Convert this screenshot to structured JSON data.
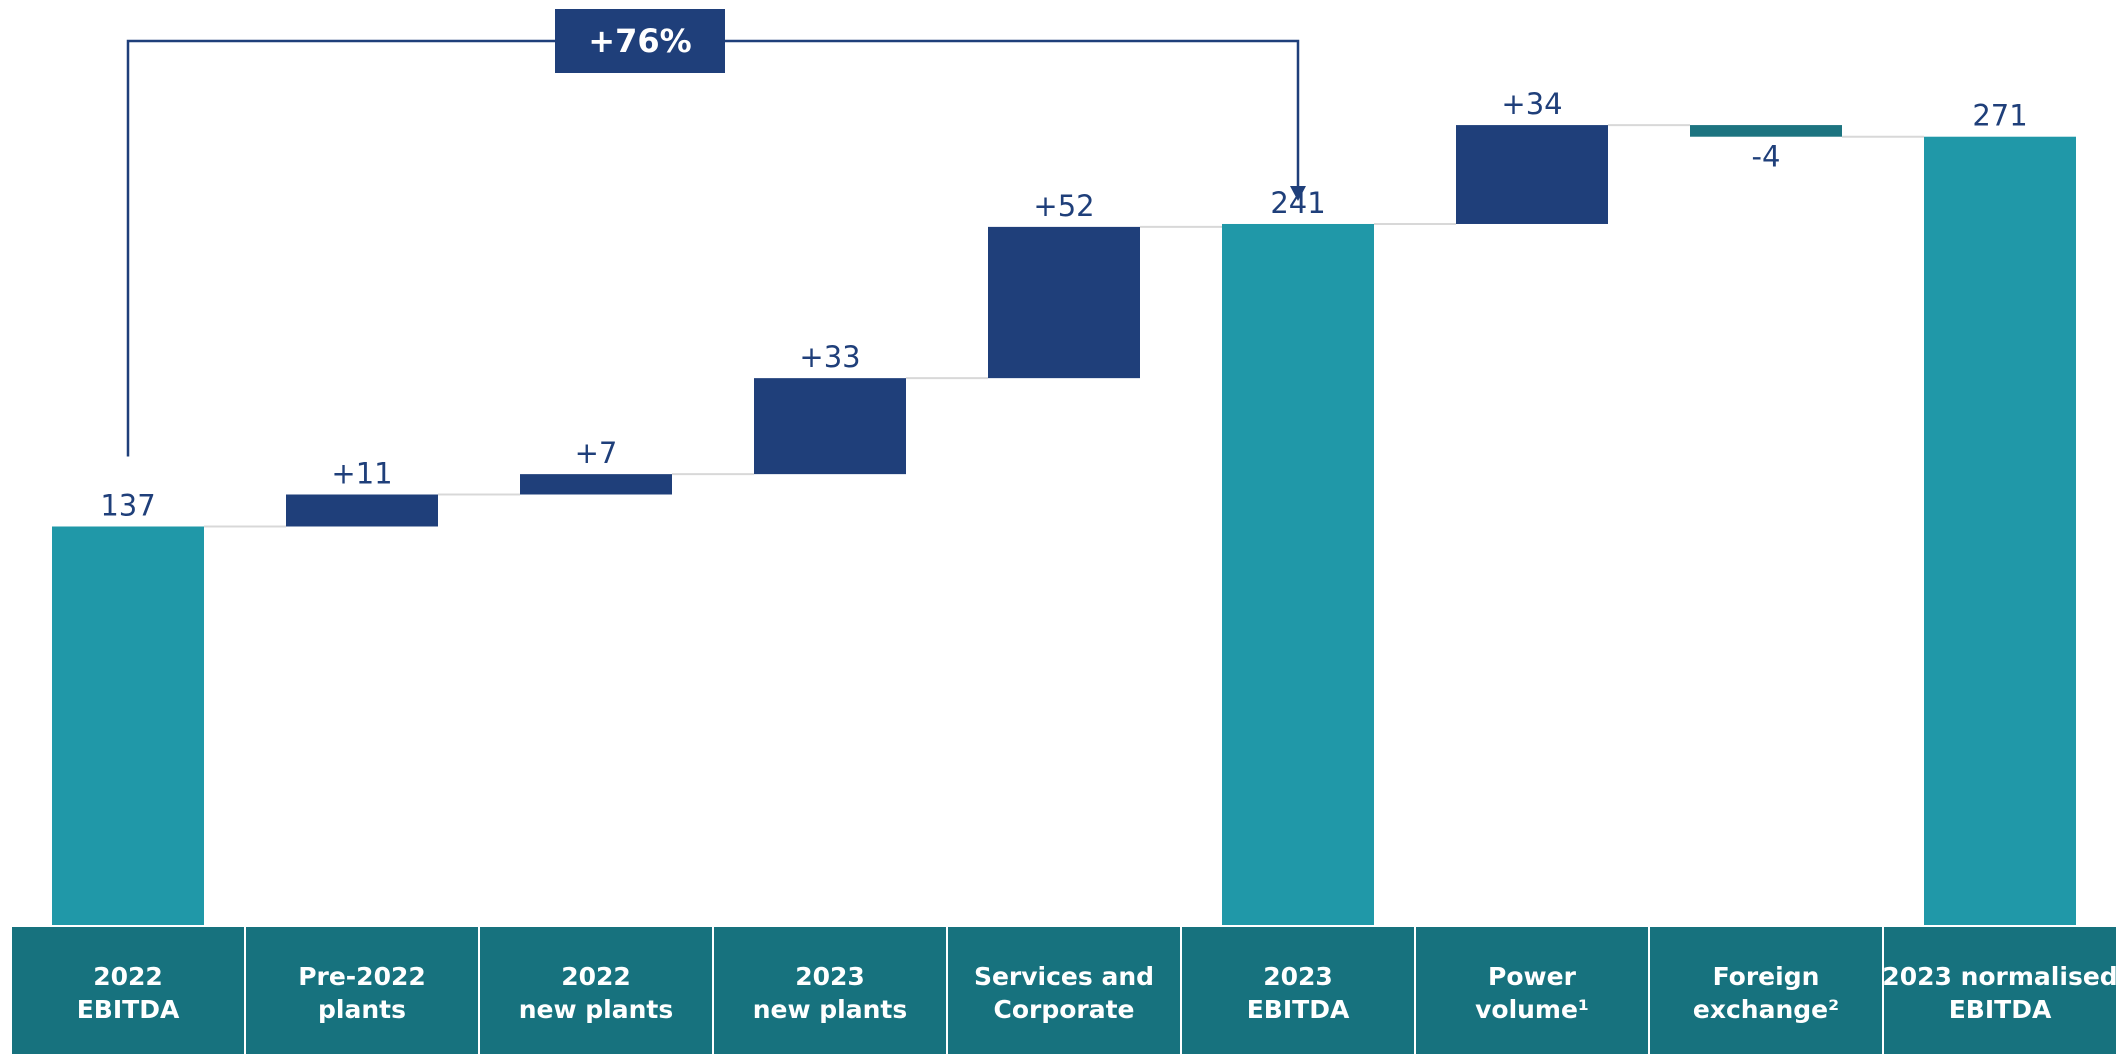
{
  "chart_data": {
    "type": "waterfall",
    "categories": [
      [
        "2022",
        "EBITDA"
      ],
      [
        "Pre-2022",
        "plants"
      ],
      [
        "2022",
        "new plants"
      ],
      [
        "2023",
        "new plants"
      ],
      [
        "Services and",
        "Corporate"
      ],
      [
        "2023",
        "EBITDA"
      ],
      [
        "Power",
        "volume¹"
      ],
      [
        "Foreign",
        "exchange²"
      ],
      [
        "2023 normalised",
        "EBITDA"
      ]
    ],
    "values": [
      137,
      11,
      7,
      33,
      52,
      241,
      34,
      -4,
      271
    ],
    "value_labels": [
      "137",
      "+11",
      "+7",
      "+33",
      "+52",
      "241",
      "+34",
      "-4",
      "271"
    ],
    "measure": [
      "total",
      "relative",
      "relative",
      "relative",
      "relative",
      "total",
      "relative",
      "relative",
      "total"
    ],
    "colors": {
      "total": "#2098a8",
      "increase": "#1f3f7a",
      "decrease": "#1d7480"
    },
    "ylim": [
      0,
      318
    ],
    "annotation": {
      "text": "+76%",
      "from": 0,
      "to": 5
    }
  }
}
